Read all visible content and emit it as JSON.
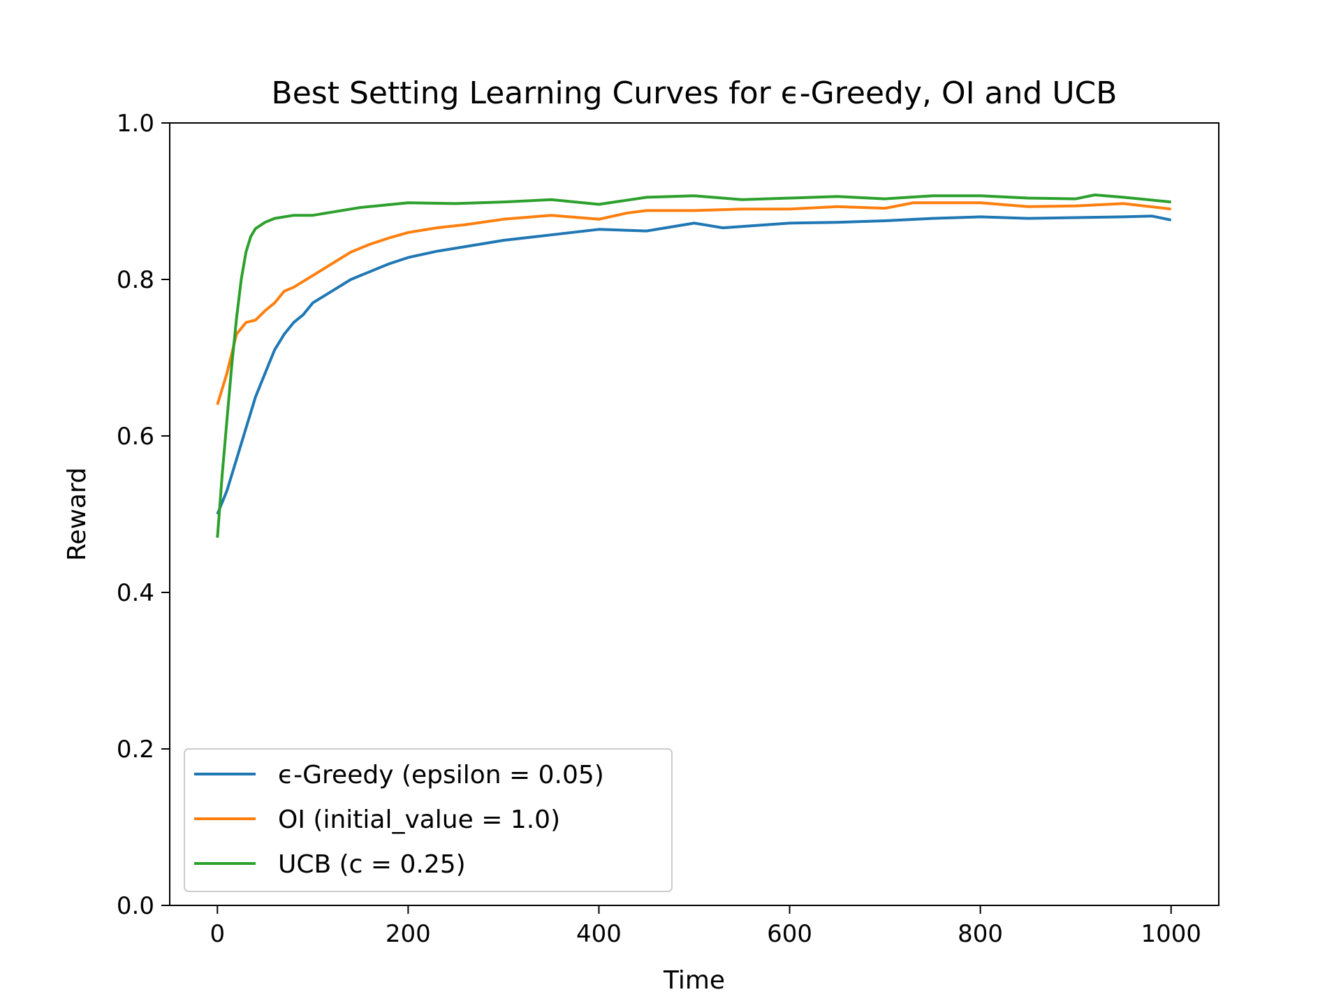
{
  "chart_data": {
    "type": "line",
    "title": "Best Setting Learning Curves for ϵ-Greedy, OI and UCB",
    "xlabel": "Time",
    "ylabel": "Reward",
    "xlim": [
      -50,
      1050
    ],
    "ylim": [
      0.0,
      1.0
    ],
    "xticks": [
      0,
      200,
      400,
      600,
      800,
      1000
    ],
    "yticks": [
      0.0,
      0.2,
      0.4,
      0.6,
      0.8,
      1.0
    ],
    "xtick_labels": [
      "0",
      "200",
      "400",
      "600",
      "800",
      "1000"
    ],
    "ytick_labels": [
      "0.0",
      "0.2",
      "0.4",
      "0.6",
      "0.8",
      "1.0"
    ],
    "grid": false,
    "legend_position": "lower-left",
    "series": [
      {
        "name": "ϵ-Greedy (epsilon = 0.05)",
        "color": "#1f77b4",
        "points": [
          [
            0,
            0.5
          ],
          [
            10,
            0.53
          ],
          [
            20,
            0.57
          ],
          [
            30,
            0.61
          ],
          [
            40,
            0.65
          ],
          [
            50,
            0.68
          ],
          [
            60,
            0.71
          ],
          [
            70,
            0.73
          ],
          [
            80,
            0.745
          ],
          [
            90,
            0.755
          ],
          [
            100,
            0.77
          ],
          [
            120,
            0.785
          ],
          [
            140,
            0.8
          ],
          [
            160,
            0.81
          ],
          [
            180,
            0.82
          ],
          [
            200,
            0.828
          ],
          [
            230,
            0.836
          ],
          [
            260,
            0.842
          ],
          [
            300,
            0.85
          ],
          [
            350,
            0.857
          ],
          [
            400,
            0.864
          ],
          [
            450,
            0.862
          ],
          [
            500,
            0.872
          ],
          [
            530,
            0.866
          ],
          [
            600,
            0.872
          ],
          [
            650,
            0.873
          ],
          [
            700,
            0.875
          ],
          [
            750,
            0.878
          ],
          [
            800,
            0.88
          ],
          [
            850,
            0.878
          ],
          [
            900,
            0.879
          ],
          [
            950,
            0.88
          ],
          [
            980,
            0.881
          ],
          [
            1000,
            0.876
          ]
        ]
      },
      {
        "name": "OI (initial_value = 1.0)",
        "color": "#ff7f0e",
        "points": [
          [
            0,
            0.64
          ],
          [
            10,
            0.68
          ],
          [
            20,
            0.73
          ],
          [
            30,
            0.745
          ],
          [
            40,
            0.748
          ],
          [
            50,
            0.76
          ],
          [
            60,
            0.77
          ],
          [
            70,
            0.785
          ],
          [
            80,
            0.79
          ],
          [
            100,
            0.805
          ],
          [
            120,
            0.82
          ],
          [
            140,
            0.835
          ],
          [
            160,
            0.845
          ],
          [
            180,
            0.853
          ],
          [
            200,
            0.86
          ],
          [
            230,
            0.866
          ],
          [
            260,
            0.87
          ],
          [
            300,
            0.877
          ],
          [
            350,
            0.882
          ],
          [
            400,
            0.877
          ],
          [
            430,
            0.885
          ],
          [
            450,
            0.888
          ],
          [
            500,
            0.888
          ],
          [
            550,
            0.89
          ],
          [
            600,
            0.89
          ],
          [
            650,
            0.893
          ],
          [
            700,
            0.891
          ],
          [
            730,
            0.898
          ],
          [
            800,
            0.898
          ],
          [
            850,
            0.893
          ],
          [
            900,
            0.894
          ],
          [
            950,
            0.897
          ],
          [
            1000,
            0.89
          ]
        ]
      },
      {
        "name": "UCB (c = 0.25)",
        "color": "#2ca02c",
        "points": [
          [
            0,
            0.47
          ],
          [
            5,
            0.55
          ],
          [
            10,
            0.62
          ],
          [
            15,
            0.69
          ],
          [
            20,
            0.75
          ],
          [
            25,
            0.8
          ],
          [
            30,
            0.835
          ],
          [
            35,
            0.855
          ],
          [
            40,
            0.865
          ],
          [
            50,
            0.873
          ],
          [
            60,
            0.878
          ],
          [
            80,
            0.882
          ],
          [
            100,
            0.882
          ],
          [
            120,
            0.886
          ],
          [
            150,
            0.892
          ],
          [
            200,
            0.898
          ],
          [
            250,
            0.897
          ],
          [
            300,
            0.899
          ],
          [
            350,
            0.902
          ],
          [
            400,
            0.896
          ],
          [
            450,
            0.905
          ],
          [
            500,
            0.907
          ],
          [
            550,
            0.902
          ],
          [
            600,
            0.904
          ],
          [
            650,
            0.906
          ],
          [
            700,
            0.903
          ],
          [
            750,
            0.907
          ],
          [
            800,
            0.907
          ],
          [
            850,
            0.904
          ],
          [
            900,
            0.903
          ],
          [
            920,
            0.908
          ],
          [
            950,
            0.905
          ],
          [
            1000,
            0.899
          ]
        ]
      }
    ]
  }
}
